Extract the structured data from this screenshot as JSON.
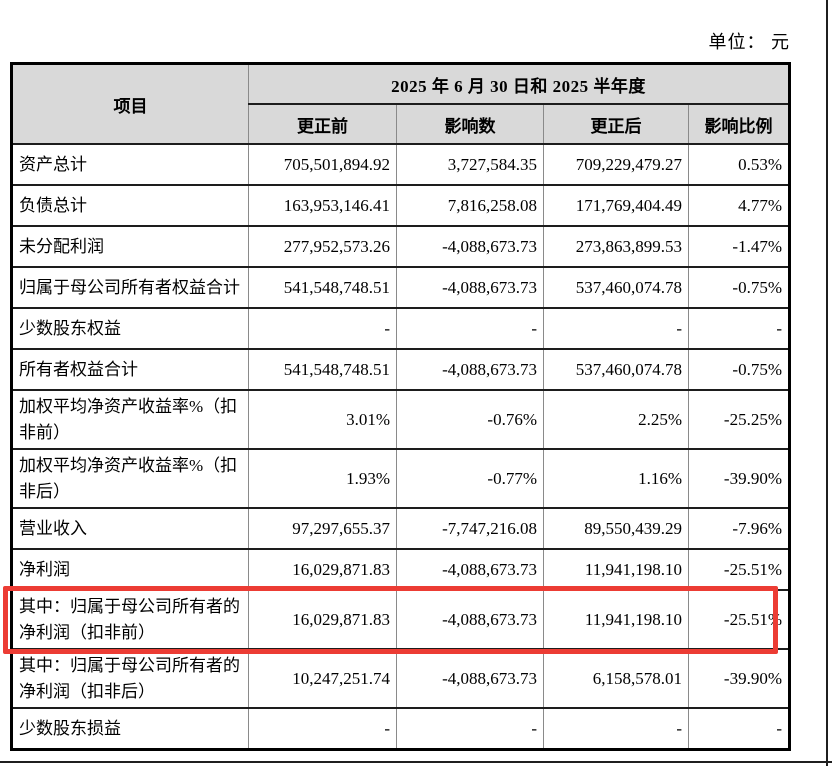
{
  "page": {
    "unit_label": "单位： 元"
  },
  "highlight_color": "#ec3c34",
  "table": {
    "header": {
      "item_col": "项目",
      "period_span": "2025 年 6 月 30 日和 2025 半年度",
      "sub_columns": [
        "更正前",
        "影响数",
        "更正后",
        "影响比例"
      ]
    },
    "rows": [
      {
        "label": "资产总计",
        "before": "705,501,894.92",
        "impact": "3,727,584.35",
        "after": "709,229,479.27",
        "ratio": "0.53%",
        "highlight": false
      },
      {
        "label": "负债总计",
        "before": "163,953,146.41",
        "impact": "7,816,258.08",
        "after": "171,769,404.49",
        "ratio": "4.77%",
        "highlight": false
      },
      {
        "label": "未分配利润",
        "before": "277,952,573.26",
        "impact": "-4,088,673.73",
        "after": "273,863,899.53",
        "ratio": "-1.47%",
        "highlight": false
      },
      {
        "label": "归属于母公司所有者权益合计",
        "before": "541,548,748.51",
        "impact": "-4,088,673.73",
        "after": "537,460,074.78",
        "ratio": "-0.75%",
        "highlight": false
      },
      {
        "label": "少数股东权益",
        "before": "-",
        "impact": "-",
        "after": "-",
        "ratio": "-",
        "highlight": false
      },
      {
        "label": "所有者权益合计",
        "before": "541,548,748.51",
        "impact": "-4,088,673.73",
        "after": "537,460,074.78",
        "ratio": "-0.75%",
        "highlight": false
      },
      {
        "label": "加权平均净资产收益率%（扣非前）",
        "before": "3.01%",
        "impact": "-0.76%",
        "after": "2.25%",
        "ratio": "-25.25%",
        "highlight": false
      },
      {
        "label": "加权平均净资产收益率%（扣非后）",
        "before": "1.93%",
        "impact": "-0.77%",
        "after": "1.16%",
        "ratio": "-39.90%",
        "highlight": false
      },
      {
        "label": "营业收入",
        "before": "97,297,655.37",
        "impact": "-7,747,216.08",
        "after": "89,550,439.29",
        "ratio": "-7.96%",
        "highlight": false
      },
      {
        "label": "净利润",
        "before": "16,029,871.83",
        "impact": "-4,088,673.73",
        "after": "11,941,198.10",
        "ratio": "-25.51%",
        "highlight": false
      },
      {
        "label": "其中：归属于母公司所有者的净利润（扣非前）",
        "before": "16,029,871.83",
        "impact": "-4,088,673.73",
        "after": "11,941,198.10",
        "ratio": "-25.51%",
        "highlight": true
      },
      {
        "label": "其中：归属于母公司所有者的净利润（扣非后）",
        "before": "10,247,251.74",
        "impact": "-4,088,673.73",
        "after": "6,158,578.01",
        "ratio": "-39.90%",
        "highlight": false
      },
      {
        "label": "少数股东损益",
        "before": "-",
        "impact": "-",
        "after": "-",
        "ratio": "-",
        "highlight": false
      }
    ]
  }
}
